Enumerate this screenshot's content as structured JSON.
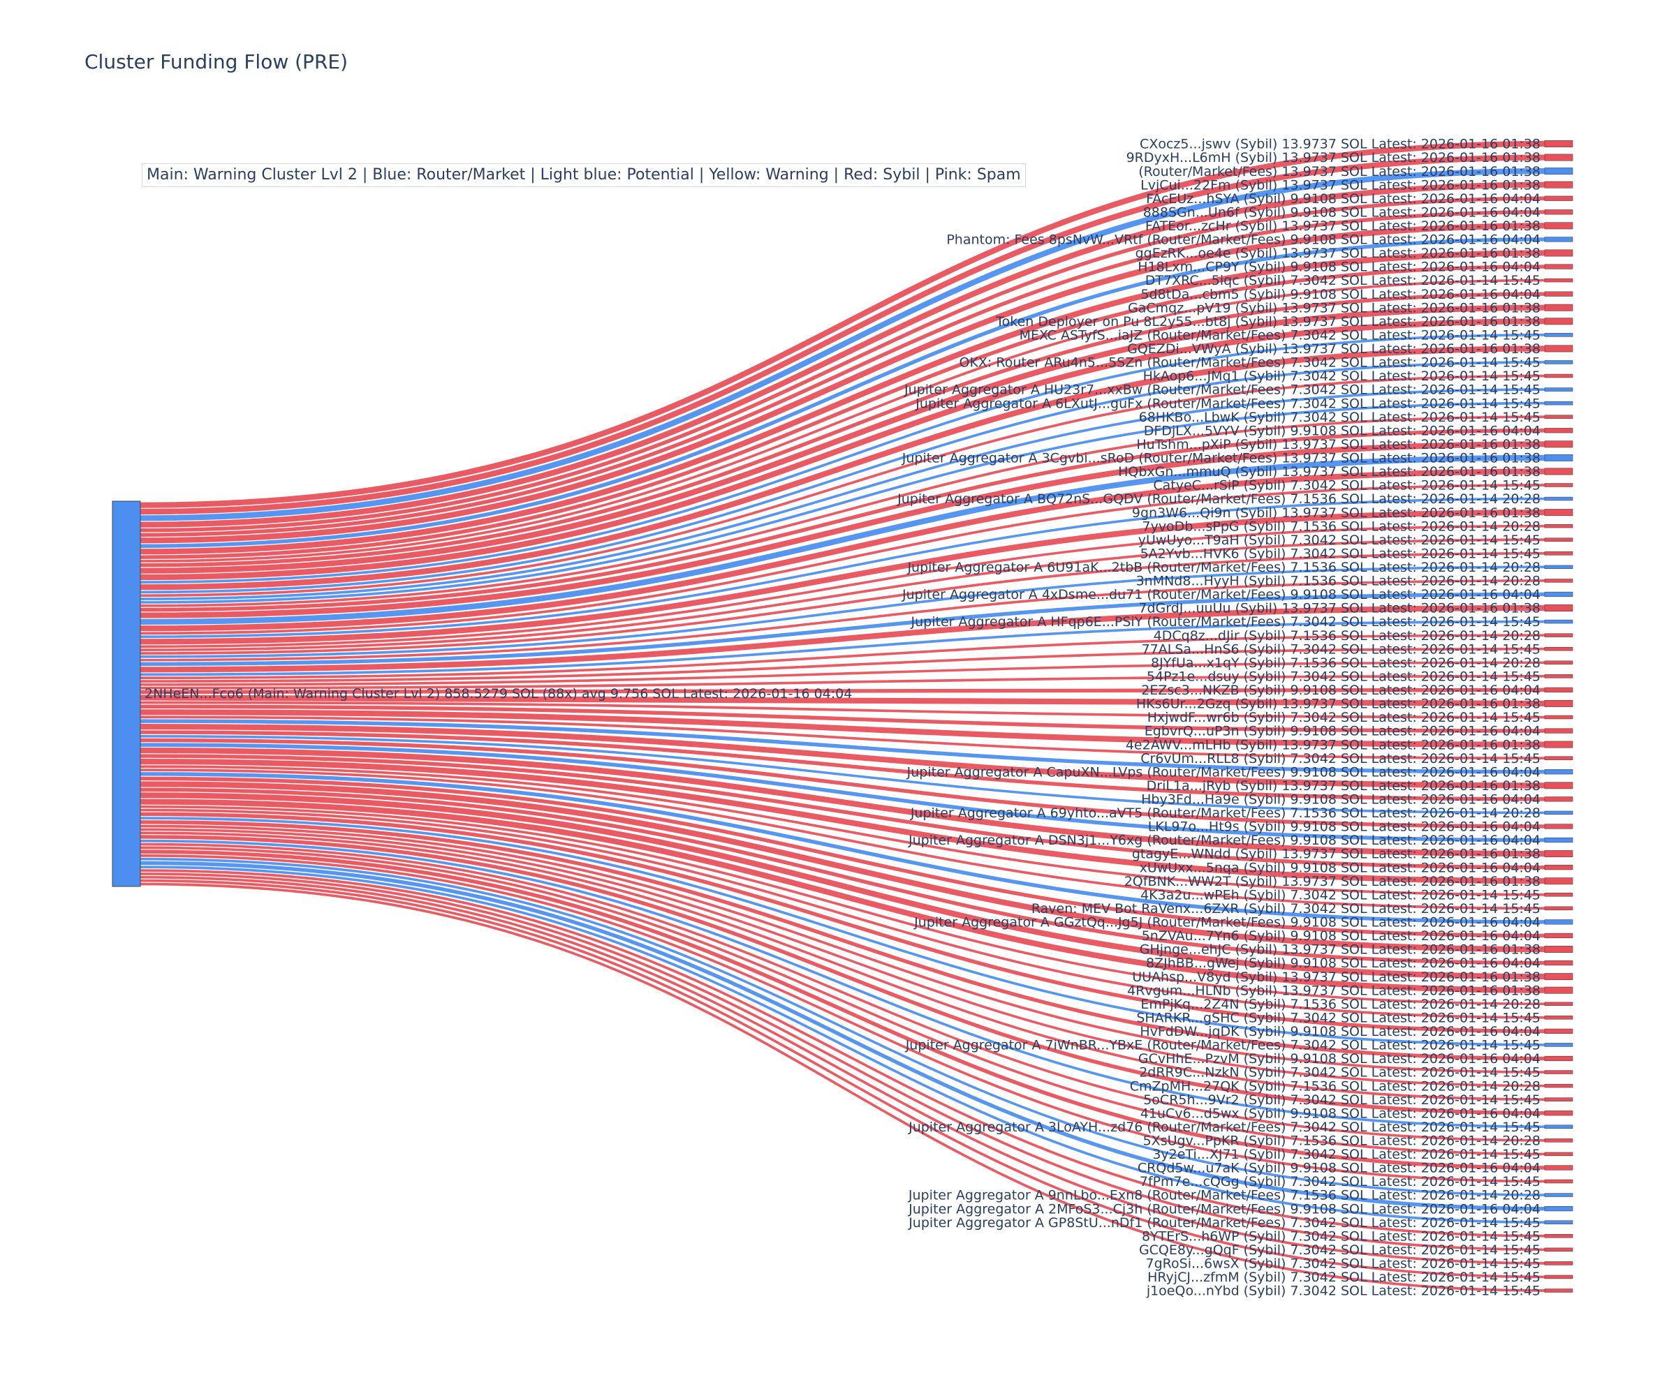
{
  "title": "Cluster Funding Flow (PRE)",
  "legend_text": "Main: Warning Cluster Lvl 2  |  Blue: Router/Market | Light blue: Potential | Yellow: Warning | Red: Sybil | Pink: Spam",
  "colors": {
    "source": "#4d8ff0",
    "sybil": "#e9515a",
    "router": "#4d8ff0",
    "text": "#2a3f5f"
  },
  "source": {
    "label": "2NHeEN...Fco6 (Main: Warning Cluster Lvl 2) 858.5279 SOL (88x) avg 9.756 SOL Latest: 2026-01-16 04:04",
    "total": 858.5279
  },
  "targets": [
    {
      "label": "CXocz5...jswv (Sybil) 13.9737 SOL Latest: 2026-01-16 01:38",
      "kind": "sybil",
      "value": 13.9737
    },
    {
      "label": "9RDyxH...L6mH (Sybil) 13.9737 SOL Latest: 2026-01-16 01:38",
      "kind": "sybil",
      "value": 13.9737
    },
    {
      "label": "(Router/Market/Fees) 13.9737 SOL Latest: 2026-01-16 01:38",
      "kind": "router",
      "value": 13.9737
    },
    {
      "label": "LvjCui...22Fm (Sybil) 13.9737 SOL Latest: 2026-01-16 01:38",
      "kind": "sybil",
      "value": 13.9737
    },
    {
      "label": "FAcEUz...hSYA (Sybil) 9.9108 SOL Latest: 2026-01-16 04:04",
      "kind": "sybil",
      "value": 9.9108
    },
    {
      "label": "888SGn...Un6f (Sybil) 9.9108 SOL Latest: 2026-01-16 04:04",
      "kind": "sybil",
      "value": 9.9108
    },
    {
      "label": "FATEor...zcHr (Sybil) 13.9737 SOL Latest: 2026-01-16 01:38",
      "kind": "sybil",
      "value": 13.9737
    },
    {
      "label": "Phantom: Fees 8psNvW...VRtf (Router/Market/Fees) 9.9108 SOL Latest: 2026-01-16 04:04",
      "kind": "router",
      "value": 9.9108
    },
    {
      "label": "ggEzRK...oe4e (Sybil) 13.9737 SOL Latest: 2026-01-16 01:38",
      "kind": "sybil",
      "value": 13.9737
    },
    {
      "label": "H18Lxm...CP9Y (Sybil) 9.9108 SOL Latest: 2026-01-16 04:04",
      "kind": "sybil",
      "value": 9.9108
    },
    {
      "label": "DT7XRC...5iqc (Sybil) 7.3042 SOL Latest: 2026-01-14 15:45",
      "kind": "sybil",
      "value": 7.3042
    },
    {
      "label": "5d8tDa...cbm5 (Sybil) 9.9108 SOL Latest: 2026-01-16 04:04",
      "kind": "sybil",
      "value": 9.9108
    },
    {
      "label": "GaCmqz...pV19 (Sybil) 13.9737 SOL Latest: 2026-01-16 01:38",
      "kind": "sybil",
      "value": 13.9737
    },
    {
      "label": "Token Deployer on Pu 8L2y55...bt8j (Sybil) 13.9737 SOL Latest: 2026-01-16 01:38",
      "kind": "sybil",
      "value": 13.9737
    },
    {
      "label": "MEXC ASTyfS...iaJZ (Router/Market/Fees) 7.3042 SOL Latest: 2026-01-14 15:45",
      "kind": "router",
      "value": 7.3042
    },
    {
      "label": "GQEZDi...VWyA (Sybil) 13.9737 SOL Latest: 2026-01-16 01:38",
      "kind": "sybil",
      "value": 13.9737
    },
    {
      "label": "OKX: Router ARu4n5...5SZn (Router/Market/Fees) 7.3042 SOL Latest: 2026-01-14 15:45",
      "kind": "router",
      "value": 7.3042
    },
    {
      "label": "HkAop6...JMq1 (Sybil) 7.3042 SOL Latest: 2026-01-14 15:45",
      "kind": "sybil",
      "value": 7.3042
    },
    {
      "label": "Jupiter Aggregator A HU23r7...xxBw (Router/Market/Fees) 7.3042 SOL Latest: 2026-01-14 15:45",
      "kind": "router",
      "value": 7.3042
    },
    {
      "label": "Jupiter Aggregator A 6LXutJ...guFx (Router/Market/Fees) 7.3042 SOL Latest: 2026-01-14 15:45",
      "kind": "router",
      "value": 7.3042
    },
    {
      "label": "68HKBo...LbwK (Sybil) 7.3042 SOL Latest: 2026-01-14 15:45",
      "kind": "sybil",
      "value": 7.3042
    },
    {
      "label": "DFDjLX...5VYV (Sybil) 9.9108 SOL Latest: 2026-01-16 04:04",
      "kind": "sybil",
      "value": 9.9108
    },
    {
      "label": "HuTshm...pXiP (Sybil) 13.9737 SOL Latest: 2026-01-16 01:38",
      "kind": "sybil",
      "value": 13.9737
    },
    {
      "label": "Jupiter Aggregator A 3Cgvbi...sRoD (Router/Market/Fees) 13.9737 SOL Latest: 2026-01-16 01:38",
      "kind": "router",
      "value": 13.9737
    },
    {
      "label": "HQbxGn...mmuQ (Sybil) 13.9737 SOL Latest: 2026-01-16 01:38",
      "kind": "sybil",
      "value": 13.9737
    },
    {
      "label": "CatyeC...rSiP (Sybil) 7.3042 SOL Latest: 2026-01-14 15:45",
      "kind": "sybil",
      "value": 7.3042
    },
    {
      "label": "Jupiter Aggregator A BQ72nS...GQDV (Router/Market/Fees) 7.1536 SOL Latest: 2026-01-14 20:28",
      "kind": "router",
      "value": 7.1536
    },
    {
      "label": "9gn3W6...Qi9n (Sybil) 13.9737 SOL Latest: 2026-01-16 01:38",
      "kind": "sybil",
      "value": 13.9737
    },
    {
      "label": "7yvoDb...sPpG (Sybil) 7.1536 SOL Latest: 2026-01-14 20:28",
      "kind": "sybil",
      "value": 7.1536
    },
    {
      "label": "yUwUyo...T9aH (Sybil) 7.3042 SOL Latest: 2026-01-14 15:45",
      "kind": "sybil",
      "value": 7.3042
    },
    {
      "label": "5A2Yvb...HVK6 (Sybil) 7.3042 SOL Latest: 2026-01-14 15:45",
      "kind": "sybil",
      "value": 7.3042
    },
    {
      "label": "Jupiter Aggregator A 6U91aK...2tbB (Router/Market/Fees) 7.1536 SOL Latest: 2026-01-14 20:28",
      "kind": "router",
      "value": 7.1536
    },
    {
      "label": "3nMNd8...HyyH (Sybil) 7.1536 SOL Latest: 2026-01-14 20:28",
      "kind": "sybil",
      "value": 7.1536
    },
    {
      "label": "Jupiter Aggregator A 4xDsme...du71 (Router/Market/Fees) 9.9108 SOL Latest: 2026-01-16 04:04",
      "kind": "router",
      "value": 9.9108
    },
    {
      "label": "7dGrdJ...uuUu (Sybil) 13.9737 SOL Latest: 2026-01-16 01:38",
      "kind": "sybil",
      "value": 13.9737
    },
    {
      "label": "Jupiter Aggregator A HFqp6E...PSiY (Router/Market/Fees) 7.3042 SOL Latest: 2026-01-14 15:45",
      "kind": "router",
      "value": 7.3042
    },
    {
      "label": "4DCq8z...dJir (Sybil) 7.1536 SOL Latest: 2026-01-14 20:28",
      "kind": "sybil",
      "value": 7.1536
    },
    {
      "label": "77ALSa...HnS6 (Sybil) 7.3042 SOL Latest: 2026-01-14 15:45",
      "kind": "sybil",
      "value": 7.3042
    },
    {
      "label": "8JYfUa...x1qY (Sybil) 7.1536 SOL Latest: 2026-01-14 20:28",
      "kind": "sybil",
      "value": 7.1536
    },
    {
      "label": "54Pz1e...dsuy (Sybil) 7.3042 SOL Latest: 2026-01-14 15:45",
      "kind": "sybil",
      "value": 7.3042
    },
    {
      "label": "2EZsc3...NKZB (Sybil) 9.9108 SOL Latest: 2026-01-16 04:04",
      "kind": "sybil",
      "value": 9.9108
    },
    {
      "label": "HKs6Ur...2Gzq (Sybil) 13.9737 SOL Latest: 2026-01-16 01:38",
      "kind": "sybil",
      "value": 13.9737
    },
    {
      "label": "HxjwdF...wr6b (Sybil) 7.3042 SOL Latest: 2026-01-14 15:45",
      "kind": "sybil",
      "value": 7.3042
    },
    {
      "label": "EgbvrQ...uP3n (Sybil) 9.9108 SOL Latest: 2026-01-16 04:04",
      "kind": "sybil",
      "value": 9.9108
    },
    {
      "label": "4e2AWV...mLHb (Sybil) 13.9737 SOL Latest: 2026-01-16 01:38",
      "kind": "sybil",
      "value": 13.9737
    },
    {
      "label": "Cr6vUm...RLL8 (Sybil) 7.3042 SOL Latest: 2026-01-14 15:45",
      "kind": "sybil",
      "value": 7.3042
    },
    {
      "label": "Jupiter Aggregator A CapuXN...LVps (Router/Market/Fees) 9.9108 SOL Latest: 2026-01-16 04:04",
      "kind": "router",
      "value": 9.9108
    },
    {
      "label": "DriL1a...jRyb (Sybil) 13.9737 SOL Latest: 2026-01-16 01:38",
      "kind": "sybil",
      "value": 13.9737
    },
    {
      "label": "Hby3Fd...Ha9e (Sybil) 9.9108 SOL Latest: 2026-01-16 04:04",
      "kind": "sybil",
      "value": 9.9108
    },
    {
      "label": "Jupiter Aggregator A 69yhto...aVT5 (Router/Market/Fees) 7.1536 SOL Latest: 2026-01-14 20:28",
      "kind": "router",
      "value": 7.1536
    },
    {
      "label": "LKL97o...Ht9s (Sybil) 9.9108 SOL Latest: 2026-01-16 04:04",
      "kind": "sybil",
      "value": 9.9108
    },
    {
      "label": "Jupiter Aggregator A DSN3j1...Y6xg (Router/Market/Fees) 9.9108 SOL Latest: 2026-01-16 04:04",
      "kind": "router",
      "value": 9.9108
    },
    {
      "label": "gtagyE...WNdd (Sybil) 13.9737 SOL Latest: 2026-01-16 01:38",
      "kind": "sybil",
      "value": 13.9737
    },
    {
      "label": "xUwUxx...5nqa (Sybil) 9.9108 SOL Latest: 2026-01-16 04:04",
      "kind": "sybil",
      "value": 9.9108
    },
    {
      "label": "2QfBNK...WW2T (Sybil) 13.9737 SOL Latest: 2026-01-16 01:38",
      "kind": "sybil",
      "value": 13.9737
    },
    {
      "label": "4K3a2u...wPEh (Sybil) 7.3042 SOL Latest: 2026-01-14 15:45",
      "kind": "sybil",
      "value": 7.3042
    },
    {
      "label": "Raven: MEV Bot RaVenx...6ZXR (Sybil) 7.3042 SOL Latest: 2026-01-14 15:45",
      "kind": "sybil",
      "value": 7.3042
    },
    {
      "label": "Jupiter Aggregator A GGztQq...Jg5J (Router/Market/Fees) 9.9108 SOL Latest: 2026-01-16 04:04",
      "kind": "router",
      "value": 9.9108
    },
    {
      "label": "5nZVAu...7Yn6 (Sybil) 9.9108 SOL Latest: 2026-01-16 04:04",
      "kind": "sybil",
      "value": 9.9108
    },
    {
      "label": "GHjnge...ehJC (Sybil) 13.9737 SOL Latest: 2026-01-16 01:38",
      "kind": "sybil",
      "value": 13.9737
    },
    {
      "label": "8ZJhBB...gWej (Sybil) 9.9108 SOL Latest: 2026-01-16 04:04",
      "kind": "sybil",
      "value": 9.9108
    },
    {
      "label": "UUAhsp...V8yd (Sybil) 13.9737 SOL Latest: 2026-01-16 01:38",
      "kind": "sybil",
      "value": 13.9737
    },
    {
      "label": "4Rvgum...HLNb (Sybil) 13.9737 SOL Latest: 2026-01-16 01:38",
      "kind": "sybil",
      "value": 13.9737
    },
    {
      "label": "EmPjKq...2Z4N (Sybil) 7.1536 SOL Latest: 2026-01-14 20:28",
      "kind": "sybil",
      "value": 7.1536
    },
    {
      "label": "SHARKR...gSHC (Sybil) 7.3042 SOL Latest: 2026-01-14 15:45",
      "kind": "sybil",
      "value": 7.3042
    },
    {
      "label": "HvFdDW...jqDK (Sybil) 9.9108 SOL Latest: 2026-01-16 04:04",
      "kind": "sybil",
      "value": 9.9108
    },
    {
      "label": "Jupiter Aggregator A 7iWnBR...YBxE (Router/Market/Fees) 7.3042 SOL Latest: 2026-01-14 15:45",
      "kind": "router",
      "value": 7.3042
    },
    {
      "label": "GCvHhE...PzvM (Sybil) 9.9108 SOL Latest: 2026-01-16 04:04",
      "kind": "sybil",
      "value": 9.9108
    },
    {
      "label": "2dRR9C...NzkN (Sybil) 7.3042 SOL Latest: 2026-01-14 15:45",
      "kind": "sybil",
      "value": 7.3042
    },
    {
      "label": "CmZpMH...27QK (Sybil) 7.1536 SOL Latest: 2026-01-14 20:28",
      "kind": "sybil",
      "value": 7.1536
    },
    {
      "label": "5oCR5h...9Vr2 (Sybil) 7.3042 SOL Latest: 2026-01-14 15:45",
      "kind": "sybil",
      "value": 7.3042
    },
    {
      "label": "41uCv6...d5wx (Sybil) 9.9108 SOL Latest: 2026-01-16 04:04",
      "kind": "sybil",
      "value": 9.9108
    },
    {
      "label": "Jupiter Aggregator A 3LoAYH...zd76 (Router/Market/Fees) 7.3042 SOL Latest: 2026-01-14 15:45",
      "kind": "router",
      "value": 7.3042
    },
    {
      "label": "5XsUgv...PpKR (Sybil) 7.1536 SOL Latest: 2026-01-14 20:28",
      "kind": "sybil",
      "value": 7.1536
    },
    {
      "label": "3y2eTi...XJ71 (Sybil) 7.3042 SOL Latest: 2026-01-14 15:45",
      "kind": "sybil",
      "value": 7.3042
    },
    {
      "label": "CRQd5w...u7aK (Sybil) 9.9108 SOL Latest: 2026-01-16 04:04",
      "kind": "sybil",
      "value": 9.9108
    },
    {
      "label": "7fPm7e...cQGg (Sybil) 7.3042 SOL Latest: 2026-01-14 15:45",
      "kind": "sybil",
      "value": 7.3042
    },
    {
      "label": "Jupiter Aggregator A 9nnLbo...Exn8 (Router/Market/Fees) 7.1536 SOL Latest: 2026-01-14 20:28",
      "kind": "router",
      "value": 7.1536
    },
    {
      "label": "Jupiter Aggregator A 2MFoS3...Cj3h (Router/Market/Fees) 9.9108 SOL Latest: 2026-01-16 04:04",
      "kind": "router",
      "value": 9.9108
    },
    {
      "label": "Jupiter Aggregator A GP8StU...nDf1 (Router/Market/Fees) 7.3042 SOL Latest: 2026-01-14 15:45",
      "kind": "router",
      "value": 7.3042
    },
    {
      "label": "8YTErS...h6WP (Sybil) 7.3042 SOL Latest: 2026-01-14 15:45",
      "kind": "sybil",
      "value": 7.3042
    },
    {
      "label": "GCQE8y...gQqF (Sybil) 7.3042 SOL Latest: 2026-01-14 15:45",
      "kind": "sybil",
      "value": 7.3042
    },
    {
      "label": "7gRoSi...6wsX (Sybil) 7.3042 SOL Latest: 2026-01-14 15:45",
      "kind": "sybil",
      "value": 7.3042
    },
    {
      "label": "HRyjCJ...zfmM (Sybil) 7.3042 SOL Latest: 2026-01-14 15:45",
      "kind": "sybil",
      "value": 7.3042
    },
    {
      "label": "j1oeQo...nYbd (Sybil) 7.3042 SOL Latest: 2026-01-14 15:45",
      "kind": "sybil",
      "value": 7.3042
    }
  ]
}
